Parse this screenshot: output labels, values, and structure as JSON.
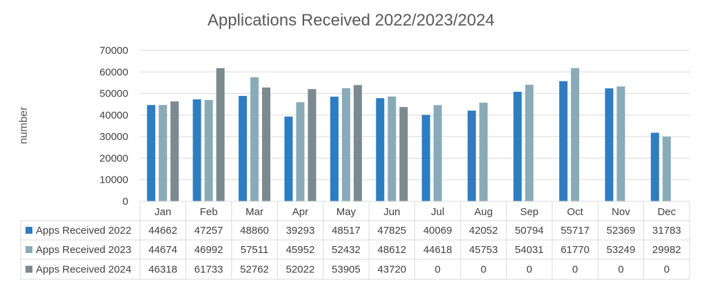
{
  "chart_data": {
    "type": "bar",
    "title": "Applications Received 2022/2023/2024",
    "xlabel": "",
    "ylabel": "number",
    "ylim": [
      0,
      70000
    ],
    "yticks": [
      0,
      10000,
      20000,
      30000,
      40000,
      50000,
      60000,
      70000
    ],
    "grid": true,
    "legend": "data-table-left",
    "categories": [
      "Jan",
      "Feb",
      "Mar",
      "Apr",
      "May",
      "Jun",
      "Jul",
      "Aug",
      "Sep",
      "Oct",
      "Nov",
      "Dec"
    ],
    "series": [
      {
        "name": "Apps Received 2022",
        "color": "#2E7DC1",
        "values": [
          44662,
          47257,
          48860,
          39293,
          48517,
          47825,
          40069,
          42052,
          50794,
          55717,
          52369,
          31783
        ]
      },
      {
        "name": "Apps Received 2023",
        "color": "#89ABB8",
        "values": [
          44674,
          46992,
          57511,
          45952,
          52432,
          48612,
          44618,
          45753,
          54031,
          61770,
          53249,
          29982
        ]
      },
      {
        "name": "Apps Received 2024",
        "color": "#7A8A8E",
        "values": [
          46318,
          61733,
          52762,
          52022,
          53905,
          43720,
          0,
          0,
          0,
          0,
          0,
          0
        ]
      }
    ]
  }
}
